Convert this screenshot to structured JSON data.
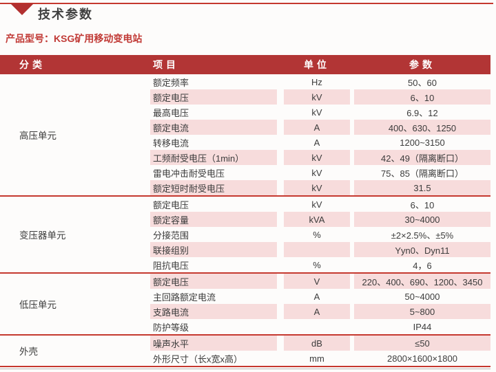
{
  "page": {
    "section_title": "技术参数",
    "product_label": "产品型号：KSG矿用移动变电站"
  },
  "colors": {
    "header_red": "#b23535",
    "accent_red": "#c5382e",
    "row_pink": "#f7dcdc",
    "product_text_red": "#c13a36"
  },
  "table": {
    "headers": {
      "category": "分类",
      "item": "项目",
      "unit": "单位",
      "value": "参数"
    },
    "sections": [
      {
        "category": "高压单元",
        "rows": [
          {
            "item": "额定频率",
            "unit": "Hz",
            "value": "50、60"
          },
          {
            "item": "额定电压",
            "unit": "kV",
            "value": "6、10"
          },
          {
            "item": "最高电压",
            "unit": "kV",
            "value": "6.9、12"
          },
          {
            "item": "额定电流",
            "unit": "A",
            "value": "400、630、1250"
          },
          {
            "item": "转移电流",
            "unit": "A",
            "value": "1200~3150"
          },
          {
            "item": "工频耐受电压（1min）",
            "unit": "kV",
            "value": "42、49（隔离断口）"
          },
          {
            "item": "雷电冲击耐受电压",
            "unit": "kV",
            "value": "75、85（隔离断口）"
          },
          {
            "item": "额定短时耐受电压",
            "unit": "kV",
            "value": "31.5"
          }
        ]
      },
      {
        "category": "变压器单元",
        "rows": [
          {
            "item": "额定电压",
            "unit": "kV",
            "value": "6、10"
          },
          {
            "item": "额定容量",
            "unit": "kVA",
            "value": "30~4000"
          },
          {
            "item": "分接范围",
            "unit": "%",
            "value": "±2×2.5%、±5%"
          },
          {
            "item": "联接组别",
            "unit": "",
            "value": "Yyn0、Dyn11"
          },
          {
            "item": "阻抗电压",
            "unit": "%",
            "value": "4，6"
          }
        ]
      },
      {
        "category": "低压单元",
        "rows": [
          {
            "item": "额定电压",
            "unit": "V",
            "value": "220、400、690、1200、3450"
          },
          {
            "item": "主回路额定电流",
            "unit": "A",
            "value": "50~4000"
          },
          {
            "item": "支路电流",
            "unit": "A",
            "value": "5~800"
          },
          {
            "item": "防护等级",
            "unit": "",
            "value": "IP44"
          }
        ]
      },
      {
        "category": "外壳",
        "rows": [
          {
            "item": "噪声水平",
            "unit": "dB",
            "value": "≤50"
          },
          {
            "item": "外形尺寸（长x宽x高）",
            "unit": "mm",
            "value": "2800×1600×1800"
          }
        ]
      }
    ]
  }
}
